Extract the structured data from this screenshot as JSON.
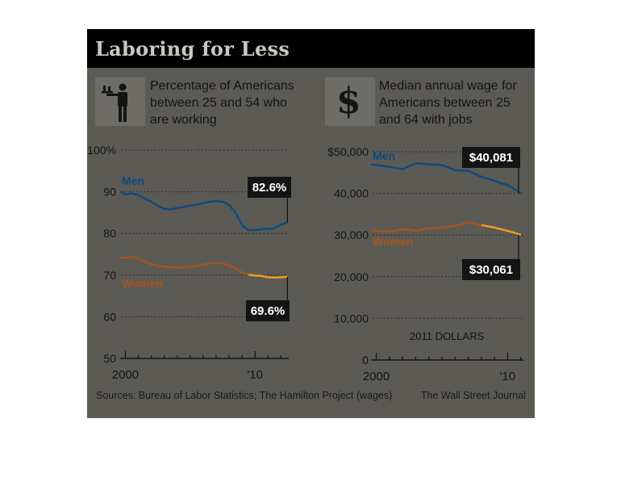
{
  "title": "Laboring for Less",
  "icons": {
    "left": "waiter-icon",
    "right": "dollar-sign-icon",
    "right_symbol": "$"
  },
  "source_note": "Sources: Bureau of Labor Statistics; The Hamilton Project (wages)",
  "credit": "The Wall Street Journal",
  "colors": {
    "background": "#5c5a55",
    "men_line": "#0f4a80",
    "women_line": "#a4541f",
    "women_highlight": "#f0a020",
    "label_box": "#141414"
  },
  "chart_data": [
    {
      "type": "line",
      "subtitle_lines": [
        "Percentage of Americans",
        "between 25 and 54 who",
        "are working"
      ],
      "x_ticks": [
        "2000",
        "'10"
      ],
      "y_ticks": [
        "100%",
        "90",
        "80",
        "70",
        "60",
        "50"
      ],
      "x_range": [
        1999.6,
        2012.6
      ],
      "ylim": [
        50,
        100
      ],
      "series": [
        {
          "name": "Men",
          "end_label": "82.6%",
          "x": [
            1999.6,
            2000.0,
            2000.5,
            2001.0,
            2001.5,
            2002.0,
            2002.5,
            2003.0,
            2003.5,
            2004.0,
            2004.5,
            2005.0,
            2005.5,
            2006.0,
            2006.5,
            2007.0,
            2007.5,
            2008.0,
            2008.5,
            2009.0,
            2009.5,
            2010.0,
            2010.5,
            2011.0,
            2011.5,
            2012.0,
            2012.5
          ],
          "y": [
            90.0,
            89.4,
            89.6,
            89.2,
            88.4,
            87.6,
            86.6,
            85.9,
            85.8,
            86.1,
            86.4,
            86.7,
            86.9,
            87.3,
            87.6,
            87.8,
            87.6,
            86.9,
            85.0,
            82.0,
            80.8,
            80.8,
            81.0,
            81.1,
            81.2,
            82.1,
            82.6
          ]
        },
        {
          "name": "Women",
          "end_label": "69.6%",
          "x": [
            1999.6,
            2000.0,
            2000.5,
            2001.0,
            2001.5,
            2002.0,
            2002.5,
            2003.0,
            2003.5,
            2004.0,
            2004.5,
            2005.0,
            2005.5,
            2006.0,
            2006.5,
            2007.0,
            2007.5,
            2008.0,
            2008.5,
            2009.0,
            2009.5,
            2010.0,
            2010.5,
            2011.0,
            2011.5,
            2012.0,
            2012.5
          ],
          "y": [
            74.1,
            74.2,
            74.4,
            74.0,
            73.2,
            72.6,
            72.3,
            72.0,
            71.9,
            71.8,
            71.9,
            72.0,
            72.2,
            72.5,
            72.8,
            72.9,
            72.8,
            72.4,
            71.6,
            70.6,
            70.1,
            69.9,
            69.8,
            69.5,
            69.4,
            69.5,
            69.6
          ]
        }
      ]
    },
    {
      "type": "line",
      "subtitle_lines": [
        "Median annual wage for",
        "Americans between 25",
        "and 64 with jobs"
      ],
      "annotation": "2011 DOLLARS",
      "x_ticks": [
        "2000",
        "'10"
      ],
      "y_ticks": [
        "$50,000",
        "40,000",
        "30,000",
        "20,000",
        "10,000",
        "0"
      ],
      "x_range": [
        1999.6,
        2011.2
      ],
      "ylim": [
        0,
        50000
      ],
      "series": [
        {
          "name": "Men",
          "end_label": "$40,081",
          "x": [
            1999.6,
            2000.0,
            2001.0,
            2002.0,
            2003.0,
            2004.0,
            2005.0,
            2006.0,
            2007.0,
            2008.0,
            2009.0,
            2010.0,
            2011.0
          ],
          "y": [
            47000,
            46800,
            46400,
            45800,
            47200,
            47000,
            46800,
            45600,
            45400,
            44000,
            43000,
            42000,
            40081
          ]
        },
        {
          "name": "Women",
          "end_label": "$30,061",
          "x": [
            1999.6,
            2000.0,
            2001.0,
            2002.0,
            2003.0,
            2004.0,
            2005.0,
            2006.0,
            2007.0,
            2008.0,
            2009.0,
            2010.0,
            2011.0
          ],
          "y": [
            31200,
            31000,
            30800,
            31400,
            31000,
            31600,
            31800,
            32200,
            33000,
            32400,
            31800,
            31000,
            30061
          ]
        }
      ]
    }
  ]
}
